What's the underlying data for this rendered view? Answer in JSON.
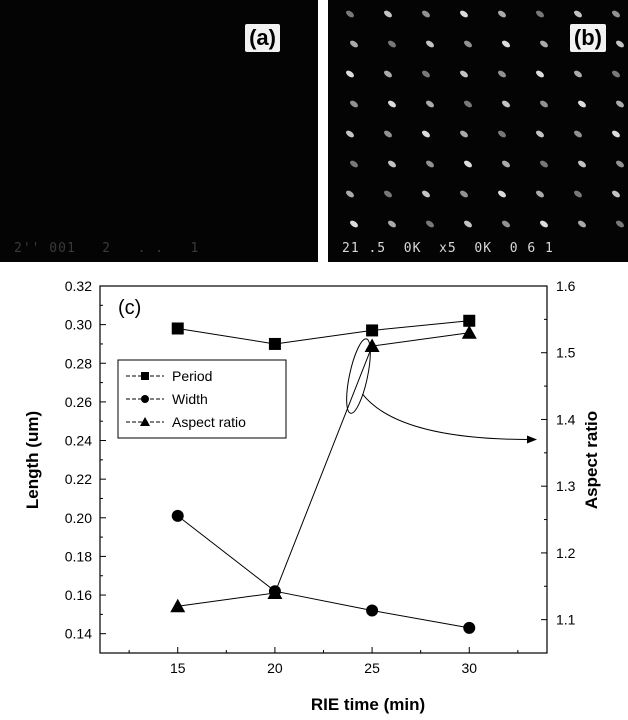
{
  "panels": {
    "a": {
      "label": "(a)",
      "scale_text": "2'' 001   2   . .   1"
    },
    "b": {
      "label": "(b)",
      "scale_text": "21 .5  0K  x5  0K  0 6 1"
    }
  },
  "chart_data": {
    "type": "line",
    "panel_label": "(c)",
    "xlabel": "RIE time (min)",
    "ylabel": "Length (um)",
    "y2label": "Aspect ratio",
    "x": [
      15,
      20,
      25,
      30
    ],
    "xlim": [
      11,
      34
    ],
    "ylim": [
      0.13,
      0.32
    ],
    "y2lim": [
      1.05,
      1.6
    ],
    "xticks": [
      "15",
      "20",
      "25",
      "30"
    ],
    "yticks": [
      "0.14",
      "0.16",
      "0.18",
      "0.20",
      "0.22",
      "0.24",
      "0.26",
      "0.28",
      "0.30",
      "0.32"
    ],
    "y2ticks": [
      "1.1",
      "1.2",
      "1.3",
      "1.4",
      "1.5",
      "1.6"
    ],
    "series": [
      {
        "name": "Period",
        "marker": "square",
        "axis": "left",
        "values": [
          0.298,
          0.29,
          0.297,
          0.302
        ]
      },
      {
        "name": "Width",
        "marker": "circle",
        "axis": "left",
        "values": [
          0.201,
          0.162,
          0.152,
          0.143
        ]
      },
      {
        "name": "Aspect ratio",
        "marker": "triangle",
        "axis": "right",
        "values": [
          1.12,
          1.14,
          1.51,
          1.53
        ]
      }
    ],
    "legend_position": "upper-left",
    "annotation": "ellipse around aspect-ratio segment with arrow pointing to right axis"
  }
}
